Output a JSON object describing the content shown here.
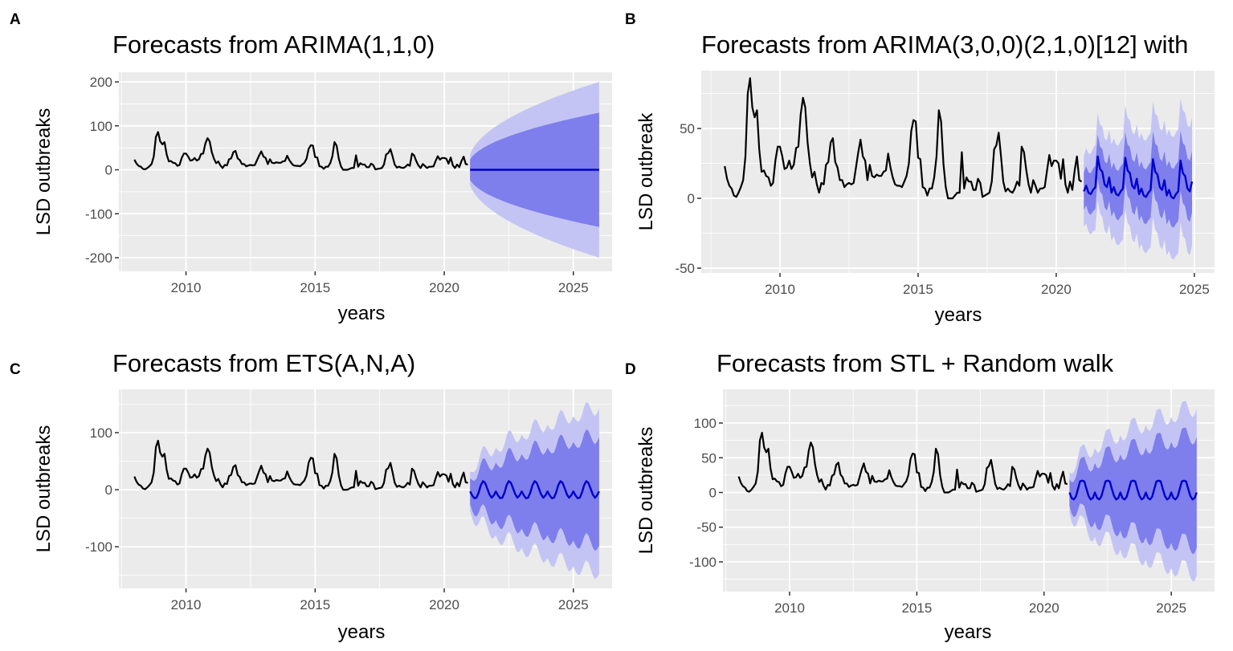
{
  "colors": {
    "panel_bg": "#EBEBEB",
    "grid": "#FFFFFF",
    "history": "#000000",
    "mean": "#0000CC",
    "pi80": "#7E7EEC",
    "pi95": "#C4C4F4",
    "tick_text": "#4D4D4D"
  },
  "history": {
    "start": 2008.0,
    "frequency": 12,
    "values": [
      23,
      14,
      9,
      7,
      2,
      1,
      4,
      8,
      13,
      30,
      75,
      86,
      65,
      58,
      63,
      35,
      19,
      20,
      16,
      15,
      9,
      11,
      27,
      37,
      37,
      30,
      21,
      22,
      27,
      21,
      24,
      36,
      37,
      60,
      72,
      65,
      40,
      25,
      15,
      19,
      10,
      4,
      11,
      10,
      24,
      26,
      40,
      43,
      26,
      22,
      13,
      13,
      8,
      10,
      11,
      10,
      11,
      22,
      33,
      42,
      30,
      27,
      13,
      24,
      16,
      15,
      17,
      16,
      16,
      19,
      20,
      32,
      22,
      15,
      10,
      9,
      9,
      8,
      12,
      16,
      25,
      48,
      56,
      55,
      29,
      28,
      8,
      7,
      2,
      7,
      7,
      15,
      30,
      63,
      55,
      25,
      8,
      0,
      0,
      0,
      2,
      4,
      4,
      33,
      7,
      15,
      12,
      12,
      6,
      6,
      14,
      11,
      1,
      2,
      3,
      4,
      12,
      35,
      38,
      47,
      30,
      12,
      5,
      7,
      5,
      4,
      7,
      12,
      9,
      37,
      33,
      20,
      10,
      4,
      13,
      9,
      4,
      7,
      7,
      8,
      20,
      31,
      23,
      27,
      27,
      25,
      14,
      28,
      10,
      4,
      12,
      6,
      20,
      30,
      13,
      12
    ]
  },
  "chart_data": [
    {
      "panel_label": "A",
      "type": "line",
      "title": "Forecasts from ARIMA(1,1,0)",
      "xlabel": "years",
      "ylabel": "LSD outbreaks",
      "xlim": [
        2007.4,
        2026.5
      ],
      "ylim": [
        -231,
        222
      ],
      "xticks": [
        2010,
        2015,
        2020,
        2025
      ],
      "xtick_labels": [
        "2010",
        "2015",
        "2020",
        "2025"
      ],
      "yticks": [
        -200,
        -100,
        0,
        100,
        200
      ],
      "ytick_labels": [
        "-200",
        "-100",
        "0",
        "100",
        "200"
      ],
      "forecast": {
        "start": 2021.0,
        "months": 61,
        "mean_pattern": [
          0,
          0,
          0,
          0,
          0,
          0,
          0,
          0,
          0,
          0,
          0,
          0
        ],
        "trend_per_year": 0,
        "pi80_halfwidth": [
          8,
          130
        ],
        "pi95_halfwidth": [
          12,
          200
        ],
        "growth": "sqrt"
      }
    },
    {
      "panel_label": "B",
      "type": "line",
      "title": "Forecasts from ARIMA(3,0,0)(2,1,0)[12] with",
      "xlabel": "years",
      "ylabel": "LSD outbreak",
      "xlim": [
        2007.15,
        2025.73
      ],
      "ylim": [
        -53.4,
        91.4
      ],
      "xticks": [
        2010,
        2015,
        2020,
        2025
      ],
      "xtick_labels": [
        "2010",
        "2015",
        "2020",
        "2025"
      ],
      "yticks": [
        -50,
        0,
        50
      ],
      "ytick_labels": [
        "-50",
        "0",
        "50"
      ],
      "forecast": {
        "start": 2021.0,
        "months": 48,
        "mean_pattern": [
          5,
          9,
          4,
          3,
          6,
          8,
          30,
          21,
          19,
          10,
          8,
          15
        ],
        "trend_per_year": -1,
        "pi80_halfwidth": [
          12,
          22
        ],
        "pi95_halfwidth": [
          22,
          46
        ],
        "growth": "sqrt"
      }
    },
    {
      "panel_label": "C",
      "type": "line",
      "title": "Forecasts from ETS(A,N,A)",
      "xlabel": "years",
      "ylabel": "LSD outbreaks",
      "xlim": [
        2007.4,
        2026.5
      ],
      "ylim": [
        -173,
        176
      ],
      "xticks": [
        2010,
        2015,
        2020,
        2025
      ],
      "xtick_labels": [
        "2010",
        "2015",
        "2020",
        "2025"
      ],
      "yticks": [
        -100,
        0,
        100
      ],
      "ytick_labels": [
        "-100",
        "0",
        "100"
      ],
      "forecast": {
        "start": 2021.0,
        "months": 61,
        "mean_pattern": [
          -3,
          -10,
          -15,
          -14,
          -5,
          8,
          15,
          12,
          2,
          -8,
          -14,
          -10
        ],
        "trend_per_year": 0,
        "pi80_halfwidth": [
          12,
          95
        ],
        "pi95_halfwidth": [
          18,
          145
        ],
        "growth": "sqrt"
      }
    },
    {
      "panel_label": "D",
      "type": "line",
      "title": "Forecasts from STL +  Random walk",
      "xlabel": "years",
      "ylabel": "LSD outbreaks",
      "xlim": [
        2007.38,
        2026.7
      ],
      "ylim": [
        -142.8,
        148.6
      ],
      "xticks": [
        2010,
        2015,
        2020,
        2025
      ],
      "xtick_labels": [
        "2010",
        "2015",
        "2020",
        "2025"
      ],
      "yticks": [
        -100,
        -50,
        0,
        50,
        100
      ],
      "ytick_labels": [
        "-100",
        "-50",
        "0",
        "50",
        "100"
      ],
      "forecast": {
        "start": 2021.0,
        "months": 61,
        "mean_pattern": [
          0,
          -8,
          -10,
          -6,
          5,
          16,
          17,
          16,
          5,
          -5,
          -10,
          -8
        ],
        "trend_per_year": 0,
        "pi80_halfwidth": [
          10,
          80
        ],
        "pi95_halfwidth": [
          16,
          120
        ],
        "growth": "sqrt"
      }
    }
  ]
}
